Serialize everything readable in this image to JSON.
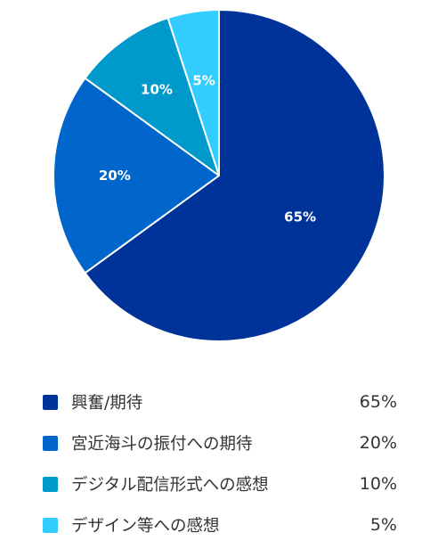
{
  "chart_data": {
    "type": "pie",
    "categories": [
      "興奮/期待",
      "宮近海斗の振付への期待",
      "デジタル配信形式への感想",
      "デザイン等への感想"
    ],
    "values": [
      65,
      20,
      10,
      5
    ],
    "value_labels": [
      "65%",
      "20%",
      "10%",
      "5%"
    ],
    "colors": [
      "#003399",
      "#0066cc",
      "#0099cc",
      "#33ccff"
    ],
    "start": "12 o'clock",
    "direction": "clockwise",
    "legend_position": "bottom"
  },
  "legend": {
    "items": [
      {
        "label": "興奮/期待",
        "value": "65%",
        "color": "#003399"
      },
      {
        "label": "宮近海斗の振付への期待",
        "value": "20%",
        "color": "#0066cc"
      },
      {
        "label": "デジタル配信形式への感想",
        "value": "10%",
        "color": "#0099cc"
      },
      {
        "label": "デザイン等への感想",
        "value": "5%",
        "color": "#33ccff"
      }
    ]
  }
}
